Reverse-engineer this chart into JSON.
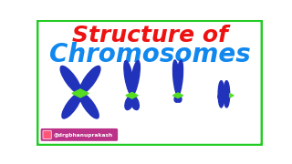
{
  "title_line1": "Structure of",
  "title_line2": "Chromosomes",
  "title_color1": "#EE1111",
  "title_color2": "#1188EE",
  "bg_color": "#FFFFFF",
  "border_color": "#22CC22",
  "chromosome_color": "#2233BB",
  "centromere_color": "#55DD22",
  "instagram_text": "@drgbhanuprakash",
  "instagram_bg": "#CC4488",
  "fig_width": 3.2,
  "fig_height": 1.8
}
